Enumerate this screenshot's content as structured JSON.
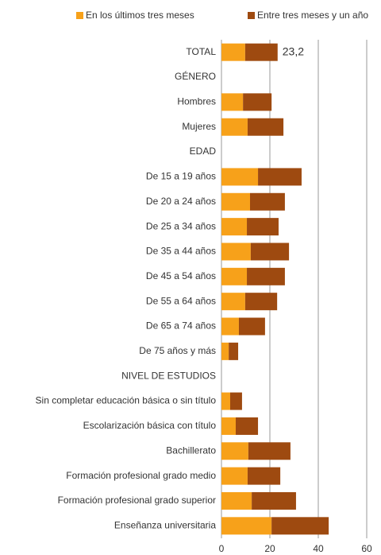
{
  "chart_data": {
    "type": "stacked-barh",
    "categories": [
      "TOTAL",
      "GÉNERO",
      "Hombres",
      "Mujeres",
      "EDAD",
      "De 15 a 19 años",
      "De 20 a 24 años",
      "De 25 a 34 años",
      "De 35 a 44 años",
      "De 45 a 54 años",
      "De 55 a 64 años",
      "De 65 a 74 años",
      "De 75 años y más",
      "NIVEL DE ESTUDIOS",
      "Sin completar educación básica o sin título",
      "Escolarización básica con título",
      "Bachillerato",
      "Formación profesional grado medio",
      "Formación profesional grado superior",
      "Enseñanza universitaria"
    ],
    "series": [
      {
        "name": "En los últimos tres meses",
        "color": "#f7a11a",
        "values": [
          9.8,
          null,
          8.9,
          10.8,
          null,
          15.1,
          11.8,
          10.5,
          12.1,
          10.5,
          9.8,
          7.2,
          3.0,
          null,
          3.6,
          5.9,
          11.1,
          10.8,
          12.5,
          20.7
        ]
      },
      {
        "name": "Entre tres meses y un año",
        "color": "#9e4a10",
        "values": [
          13.4,
          null,
          11.8,
          14.8,
          null,
          18.0,
          14.4,
          13.1,
          15.8,
          15.7,
          13.2,
          10.8,
          3.9,
          null,
          4.9,
          9.2,
          17.4,
          13.5,
          18.3,
          23.6
        ]
      }
    ],
    "annotations": [
      {
        "text": "23,2",
        "category": "TOTAL",
        "value": 23.2
      }
    ],
    "xlim": [
      0,
      60
    ],
    "xticks": [
      0,
      20,
      40,
      60
    ],
    "grid": true,
    "legend": "top"
  }
}
